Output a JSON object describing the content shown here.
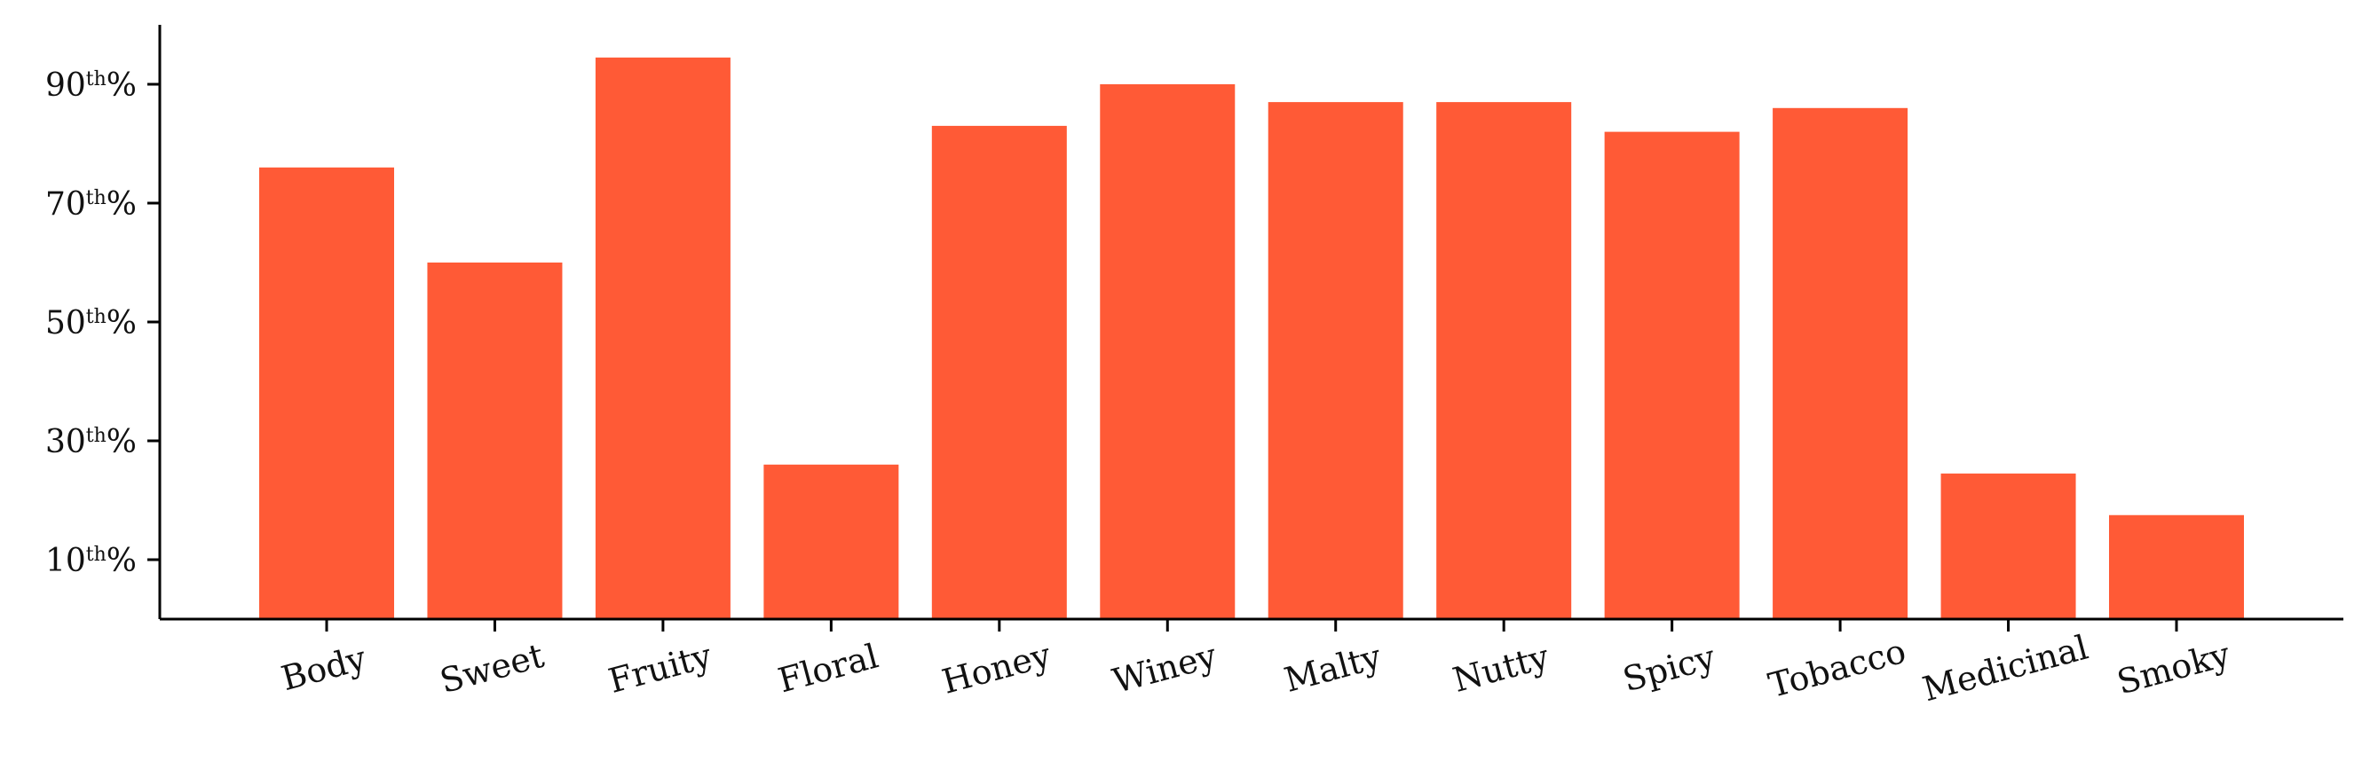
{
  "chart_data": {
    "type": "bar",
    "title": "",
    "xlabel": "",
    "ylabel": "",
    "categories": [
      "Body",
      "Sweet",
      "Fruity",
      "Floral",
      "Honey",
      "Winey",
      "Malty",
      "Nutty",
      "Spicy",
      "Tobacco",
      "Medicinal",
      "Smoky"
    ],
    "values": [
      76,
      60,
      94.5,
      26,
      83,
      90,
      87,
      87,
      82,
      86,
      24.5,
      17.5
    ],
    "ylim": [
      0,
      100
    ],
    "yticks": [
      {
        "value": 10,
        "num": "10",
        "sup": "th",
        "suffix": "%"
      },
      {
        "value": 30,
        "num": "30",
        "sup": "th",
        "suffix": "%"
      },
      {
        "value": 50,
        "num": "50",
        "sup": "th",
        "suffix": "%"
      },
      {
        "value": 70,
        "num": "70",
        "sup": "th",
        "suffix": "%"
      },
      {
        "value": 90,
        "num": "90",
        "sup": "th",
        "suffix": "%"
      }
    ],
    "grid": false,
    "legend": "none",
    "bar_color": "#ff5a36"
  }
}
